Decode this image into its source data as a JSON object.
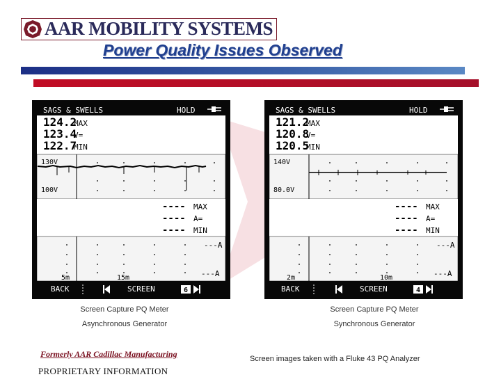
{
  "header": {
    "logo_text": "AAR MOBILITY SYSTEMS",
    "title": "Power Quality Issues Observed"
  },
  "colors": {
    "title_blue": "#1f3f8f",
    "bar_blue": "#1c2f86",
    "bar_red": "#c10d25",
    "logo_maroon": "#7a1a2a"
  },
  "screens": [
    {
      "mode": "SAGS & SWELLS",
      "hold": "HOLD",
      "max_value": "124.2",
      "max_label": "MAX",
      "avg_value": "123.4",
      "avg_label": "V=",
      "min_value": "122.7",
      "min_label": "MIN",
      "upper_limit": "130V",
      "lower_limit": "100V",
      "current_max_dash": "----",
      "current_max_label": "MAX",
      "current_avg_dash": "----",
      "current_avg_label": "A=",
      "current_min_dash": "----",
      "current_min_label": "MIN",
      "amp_top": "---A",
      "amp_bottom": "---A",
      "time_left": "5m",
      "time_right": "15m",
      "btn_back": "BACK",
      "btn_screen": "SCREEN",
      "page_number": "6",
      "caption_1": "Screen Capture PQ Meter",
      "caption_2": "Asynchronous Generator"
    },
    {
      "mode": "SAGS & SWELLS",
      "hold": "HOLD",
      "max_value": "121.2",
      "max_label": "MAX",
      "avg_value": "120.8",
      "avg_label": "V=",
      "min_value": "120.5",
      "min_label": "MIN",
      "upper_limit": "140V",
      "lower_limit": "80.0V",
      "current_max_dash": "----",
      "current_max_label": "MAX",
      "current_avg_dash": "----",
      "current_avg_label": "A=",
      "current_min_dash": "----",
      "current_min_label": "MIN",
      "amp_top": "---A",
      "amp_bottom": "---A",
      "time_left": "2m",
      "time_right": "10m",
      "btn_back": "BACK",
      "btn_screen": "SCREEN",
      "page_number": "4",
      "caption_1": "Screen Capture PQ Meter",
      "caption_2": "Synchronous Generator"
    }
  ],
  "footer": {
    "formerly": "Formerly AAR Cadillac Manufacturing",
    "proprietary": "PROPRIETARY INFORMATION",
    "fluke_note": "Screen images taken with a Fluke 43 PQ Analyzer"
  }
}
